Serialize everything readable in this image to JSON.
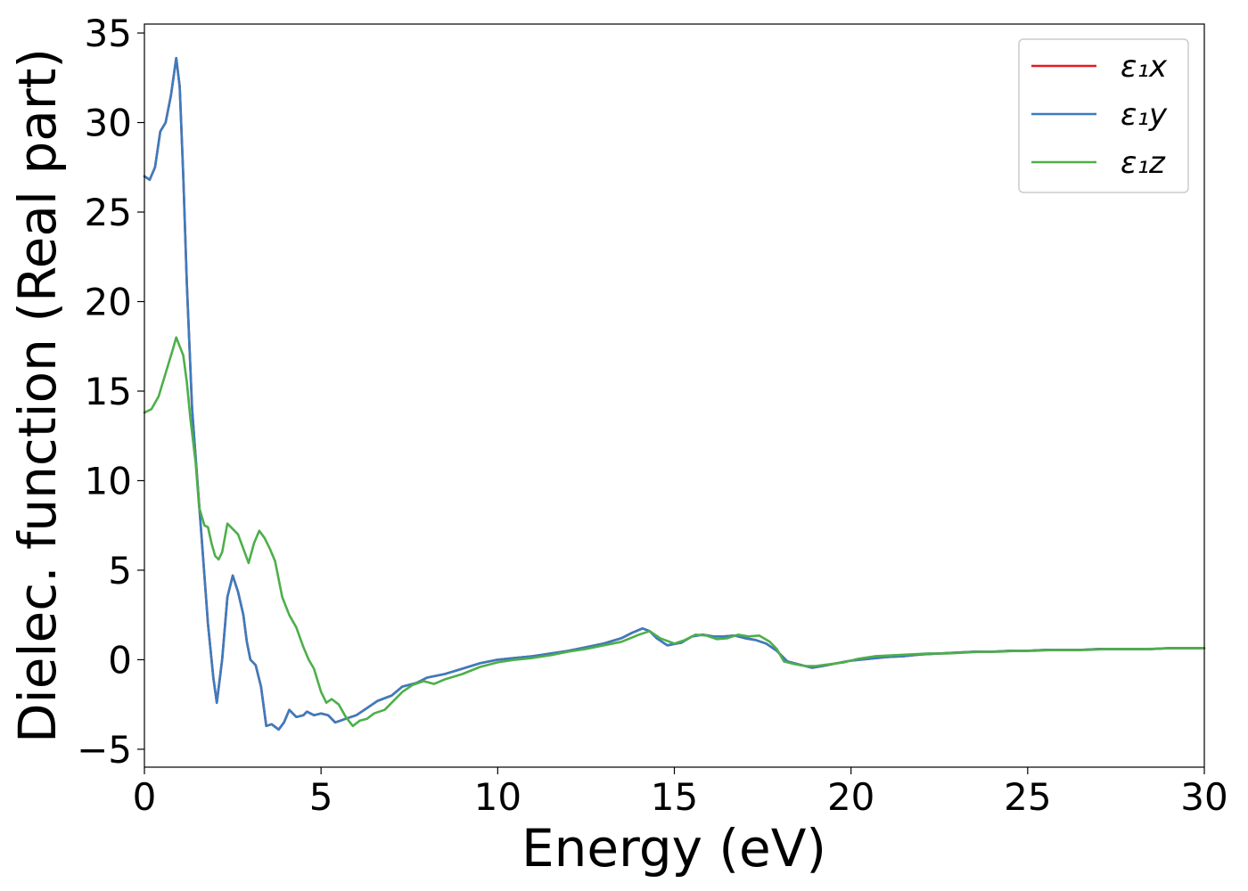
{
  "chart_data": {
    "type": "line",
    "title": "",
    "xlabel": "Energy (eV)",
    "ylabel": "Dielec. function (Real part)",
    "xlim": [
      0,
      30
    ],
    "ylim": [
      -6,
      35.5
    ],
    "xticks": [
      0,
      5,
      10,
      15,
      20,
      25,
      30
    ],
    "yticks": [
      -5,
      0,
      5,
      10,
      15,
      20,
      25,
      30,
      35
    ],
    "xtick_labels": [
      "0",
      "5",
      "10",
      "15",
      "20",
      "25",
      "30"
    ],
    "ytick_labels": [
      "−5",
      "0",
      "5",
      "10",
      "15",
      "20",
      "25",
      "30",
      "35"
    ],
    "grid": false,
    "legend": "top-right",
    "series": [
      {
        "name": "ε₁x",
        "color": "#e41a1c",
        "points": [
          [
            0,
            27.0
          ],
          [
            0.15,
            26.8
          ],
          [
            0.3,
            27.5
          ],
          [
            0.45,
            29.5
          ],
          [
            0.6,
            30.0
          ],
          [
            0.75,
            31.5
          ],
          [
            0.9,
            33.6
          ],
          [
            1.0,
            32.0
          ],
          [
            1.1,
            27.0
          ],
          [
            1.2,
            21.0
          ],
          [
            1.35,
            14.0
          ],
          [
            1.5,
            10.0
          ],
          [
            1.65,
            6.0
          ],
          [
            1.8,
            2.0
          ],
          [
            1.95,
            -1.0
          ],
          [
            2.05,
            -2.4
          ],
          [
            2.2,
            0.0
          ],
          [
            2.35,
            3.5
          ],
          [
            2.5,
            4.7
          ],
          [
            2.65,
            3.8
          ],
          [
            2.8,
            2.5
          ],
          [
            2.9,
            1.0
          ],
          [
            3.0,
            0.0
          ],
          [
            3.15,
            -0.3
          ],
          [
            3.3,
            -1.5
          ],
          [
            3.45,
            -3.7
          ],
          [
            3.6,
            -3.6
          ],
          [
            3.8,
            -3.9
          ],
          [
            3.95,
            -3.5
          ],
          [
            4.1,
            -2.8
          ],
          [
            4.3,
            -3.2
          ],
          [
            4.5,
            -3.1
          ],
          [
            4.6,
            -2.9
          ],
          [
            4.8,
            -3.1
          ],
          [
            5.0,
            -3.0
          ],
          [
            5.2,
            -3.1
          ],
          [
            5.4,
            -3.5
          ],
          [
            5.7,
            -3.3
          ],
          [
            6.0,
            -3.1
          ],
          [
            6.3,
            -2.7
          ],
          [
            6.6,
            -2.3
          ],
          [
            7.0,
            -2.0
          ],
          [
            7.3,
            -1.5
          ],
          [
            7.7,
            -1.3
          ],
          [
            8.0,
            -1.0
          ],
          [
            8.5,
            -0.8
          ],
          [
            9.0,
            -0.5
          ],
          [
            9.5,
            -0.2
          ],
          [
            10.0,
            0.0
          ],
          [
            10.5,
            0.1
          ],
          [
            11.0,
            0.2
          ],
          [
            11.5,
            0.35
          ],
          [
            12.0,
            0.5
          ],
          [
            12.5,
            0.7
          ],
          [
            13.0,
            0.9
          ],
          [
            13.5,
            1.2
          ],
          [
            13.8,
            1.5
          ],
          [
            14.1,
            1.75
          ],
          [
            14.3,
            1.6
          ],
          [
            14.5,
            1.2
          ],
          [
            14.8,
            0.8
          ],
          [
            15.2,
            0.95
          ],
          [
            15.5,
            1.3
          ],
          [
            15.8,
            1.4
          ],
          [
            16.1,
            1.3
          ],
          [
            16.4,
            1.3
          ],
          [
            16.7,
            1.35
          ],
          [
            17.0,
            1.2
          ],
          [
            17.3,
            1.1
          ],
          [
            17.6,
            0.9
          ],
          [
            17.9,
            0.5
          ],
          [
            18.2,
            -0.1
          ],
          [
            18.6,
            -0.3
          ],
          [
            18.9,
            -0.45
          ],
          [
            19.2,
            -0.35
          ],
          [
            19.6,
            -0.2
          ],
          [
            20.0,
            -0.05
          ],
          [
            20.5,
            0.05
          ],
          [
            21.0,
            0.15
          ],
          [
            21.5,
            0.2
          ],
          [
            22.0,
            0.3
          ],
          [
            22.5,
            0.35
          ],
          [
            23.0,
            0.4
          ],
          [
            23.5,
            0.45
          ],
          [
            24.0,
            0.45
          ],
          [
            24.5,
            0.5
          ],
          [
            25.0,
            0.5
          ],
          [
            25.5,
            0.55
          ],
          [
            26.0,
            0.55
          ],
          [
            26.5,
            0.55
          ],
          [
            27.0,
            0.6
          ],
          [
            27.5,
            0.6
          ],
          [
            28.0,
            0.6
          ],
          [
            28.5,
            0.6
          ],
          [
            29.0,
            0.65
          ],
          [
            29.5,
            0.65
          ],
          [
            30.0,
            0.65
          ]
        ]
      },
      {
        "name": "ε₁y",
        "color": "#3a7cbf",
        "points": [
          [
            0,
            27.0
          ],
          [
            0.15,
            26.8
          ],
          [
            0.3,
            27.5
          ],
          [
            0.45,
            29.5
          ],
          [
            0.6,
            30.0
          ],
          [
            0.75,
            31.5
          ],
          [
            0.9,
            33.6
          ],
          [
            1.0,
            32.0
          ],
          [
            1.1,
            27.0
          ],
          [
            1.2,
            21.0
          ],
          [
            1.35,
            14.0
          ],
          [
            1.5,
            10.0
          ],
          [
            1.65,
            6.0
          ],
          [
            1.8,
            2.0
          ],
          [
            1.95,
            -1.0
          ],
          [
            2.05,
            -2.4
          ],
          [
            2.2,
            0.0
          ],
          [
            2.35,
            3.5
          ],
          [
            2.5,
            4.7
          ],
          [
            2.65,
            3.8
          ],
          [
            2.8,
            2.5
          ],
          [
            2.9,
            1.0
          ],
          [
            3.0,
            0.0
          ],
          [
            3.15,
            -0.3
          ],
          [
            3.3,
            -1.5
          ],
          [
            3.45,
            -3.7
          ],
          [
            3.6,
            -3.6
          ],
          [
            3.8,
            -3.9
          ],
          [
            3.95,
            -3.5
          ],
          [
            4.1,
            -2.8
          ],
          [
            4.3,
            -3.2
          ],
          [
            4.5,
            -3.1
          ],
          [
            4.6,
            -2.9
          ],
          [
            4.8,
            -3.1
          ],
          [
            5.0,
            -3.0
          ],
          [
            5.2,
            -3.1
          ],
          [
            5.4,
            -3.5
          ],
          [
            5.7,
            -3.3
          ],
          [
            6.0,
            -3.1
          ],
          [
            6.3,
            -2.7
          ],
          [
            6.6,
            -2.3
          ],
          [
            7.0,
            -2.0
          ],
          [
            7.3,
            -1.5
          ],
          [
            7.7,
            -1.3
          ],
          [
            8.0,
            -1.0
          ],
          [
            8.5,
            -0.8
          ],
          [
            9.0,
            -0.5
          ],
          [
            9.5,
            -0.2
          ],
          [
            10.0,
            0.0
          ],
          [
            10.5,
            0.1
          ],
          [
            11.0,
            0.2
          ],
          [
            11.5,
            0.35
          ],
          [
            12.0,
            0.5
          ],
          [
            12.5,
            0.7
          ],
          [
            13.0,
            0.9
          ],
          [
            13.5,
            1.2
          ],
          [
            13.8,
            1.5
          ],
          [
            14.1,
            1.75
          ],
          [
            14.3,
            1.6
          ],
          [
            14.5,
            1.2
          ],
          [
            14.8,
            0.8
          ],
          [
            15.2,
            0.95
          ],
          [
            15.5,
            1.3
          ],
          [
            15.8,
            1.4
          ],
          [
            16.1,
            1.3
          ],
          [
            16.4,
            1.3
          ],
          [
            16.7,
            1.35
          ],
          [
            17.0,
            1.2
          ],
          [
            17.3,
            1.1
          ],
          [
            17.6,
            0.9
          ],
          [
            17.9,
            0.5
          ],
          [
            18.2,
            -0.1
          ],
          [
            18.6,
            -0.3
          ],
          [
            18.9,
            -0.45
          ],
          [
            19.2,
            -0.35
          ],
          [
            19.6,
            -0.2
          ],
          [
            20.0,
            -0.05
          ],
          [
            20.5,
            0.05
          ],
          [
            21.0,
            0.15
          ],
          [
            21.5,
            0.2
          ],
          [
            22.0,
            0.3
          ],
          [
            22.5,
            0.35
          ],
          [
            23.0,
            0.4
          ],
          [
            23.5,
            0.45
          ],
          [
            24.0,
            0.45
          ],
          [
            24.5,
            0.5
          ],
          [
            25.0,
            0.5
          ],
          [
            25.5,
            0.55
          ],
          [
            26.0,
            0.55
          ],
          [
            26.5,
            0.55
          ],
          [
            27.0,
            0.6
          ],
          [
            27.5,
            0.6
          ],
          [
            28.0,
            0.6
          ],
          [
            28.5,
            0.6
          ],
          [
            29.0,
            0.65
          ],
          [
            29.5,
            0.65
          ],
          [
            30.0,
            0.65
          ]
        ]
      },
      {
        "name": "ε₁z",
        "color": "#4daf4a",
        "points": [
          [
            0,
            13.8
          ],
          [
            0.2,
            14.0
          ],
          [
            0.4,
            14.7
          ],
          [
            0.6,
            16.0
          ],
          [
            0.8,
            17.3
          ],
          [
            0.9,
            18.0
          ],
          [
            1.0,
            17.5
          ],
          [
            1.1,
            17.0
          ],
          [
            1.2,
            15.5
          ],
          [
            1.3,
            13.5
          ],
          [
            1.45,
            11.0
          ],
          [
            1.55,
            8.5
          ],
          [
            1.7,
            7.5
          ],
          [
            1.8,
            7.4
          ],
          [
            1.9,
            6.5
          ],
          [
            2.0,
            5.8
          ],
          [
            2.1,
            5.6
          ],
          [
            2.2,
            6.0
          ],
          [
            2.35,
            7.6
          ],
          [
            2.5,
            7.3
          ],
          [
            2.65,
            7.0
          ],
          [
            2.8,
            6.2
          ],
          [
            2.95,
            5.4
          ],
          [
            3.1,
            6.5
          ],
          [
            3.25,
            7.2
          ],
          [
            3.4,
            6.8
          ],
          [
            3.55,
            6.2
          ],
          [
            3.7,
            5.5
          ],
          [
            3.9,
            3.5
          ],
          [
            4.1,
            2.5
          ],
          [
            4.3,
            1.8
          ],
          [
            4.5,
            0.7
          ],
          [
            4.65,
            0.0
          ],
          [
            4.8,
            -0.5
          ],
          [
            5.0,
            -1.8
          ],
          [
            5.15,
            -2.4
          ],
          [
            5.3,
            -2.2
          ],
          [
            5.5,
            -2.5
          ],
          [
            5.7,
            -3.2
          ],
          [
            5.9,
            -3.7
          ],
          [
            6.1,
            -3.4
          ],
          [
            6.3,
            -3.3
          ],
          [
            6.5,
            -3.0
          ],
          [
            6.8,
            -2.8
          ],
          [
            7.0,
            -2.4
          ],
          [
            7.3,
            -1.8
          ],
          [
            7.6,
            -1.4
          ],
          [
            7.9,
            -1.2
          ],
          [
            8.2,
            -1.35
          ],
          [
            8.5,
            -1.1
          ],
          [
            9.0,
            -0.8
          ],
          [
            9.5,
            -0.4
          ],
          [
            10.0,
            -0.15
          ],
          [
            10.5,
            0.0
          ],
          [
            11.0,
            0.1
          ],
          [
            11.5,
            0.25
          ],
          [
            12.0,
            0.45
          ],
          [
            12.5,
            0.6
          ],
          [
            13.0,
            0.8
          ],
          [
            13.5,
            1.0
          ],
          [
            14.0,
            1.4
          ],
          [
            14.3,
            1.6
          ],
          [
            14.6,
            1.2
          ],
          [
            15.0,
            0.9
          ],
          [
            15.3,
            1.1
          ],
          [
            15.6,
            1.4
          ],
          [
            15.9,
            1.35
          ],
          [
            16.2,
            1.15
          ],
          [
            16.5,
            1.2
          ],
          [
            16.8,
            1.4
          ],
          [
            17.1,
            1.3
          ],
          [
            17.4,
            1.35
          ],
          [
            17.7,
            1.0
          ],
          [
            17.9,
            0.6
          ],
          [
            18.1,
            -0.1
          ],
          [
            18.4,
            -0.25
          ],
          [
            18.7,
            -0.35
          ],
          [
            19.0,
            -0.35
          ],
          [
            19.4,
            -0.25
          ],
          [
            19.8,
            -0.15
          ],
          [
            20.2,
            0.05
          ],
          [
            20.7,
            0.2
          ],
          [
            21.2,
            0.25
          ],
          [
            21.7,
            0.3
          ],
          [
            22.2,
            0.35
          ],
          [
            22.7,
            0.35
          ],
          [
            23.2,
            0.4
          ],
          [
            23.7,
            0.45
          ],
          [
            24.2,
            0.45
          ],
          [
            24.7,
            0.5
          ],
          [
            25.2,
            0.5
          ],
          [
            25.7,
            0.55
          ],
          [
            26.2,
            0.55
          ],
          [
            26.7,
            0.55
          ],
          [
            27.2,
            0.6
          ],
          [
            27.7,
            0.6
          ],
          [
            28.2,
            0.6
          ],
          [
            28.7,
            0.62
          ],
          [
            29.2,
            0.65
          ],
          [
            30.0,
            0.65
          ]
        ]
      }
    ]
  }
}
